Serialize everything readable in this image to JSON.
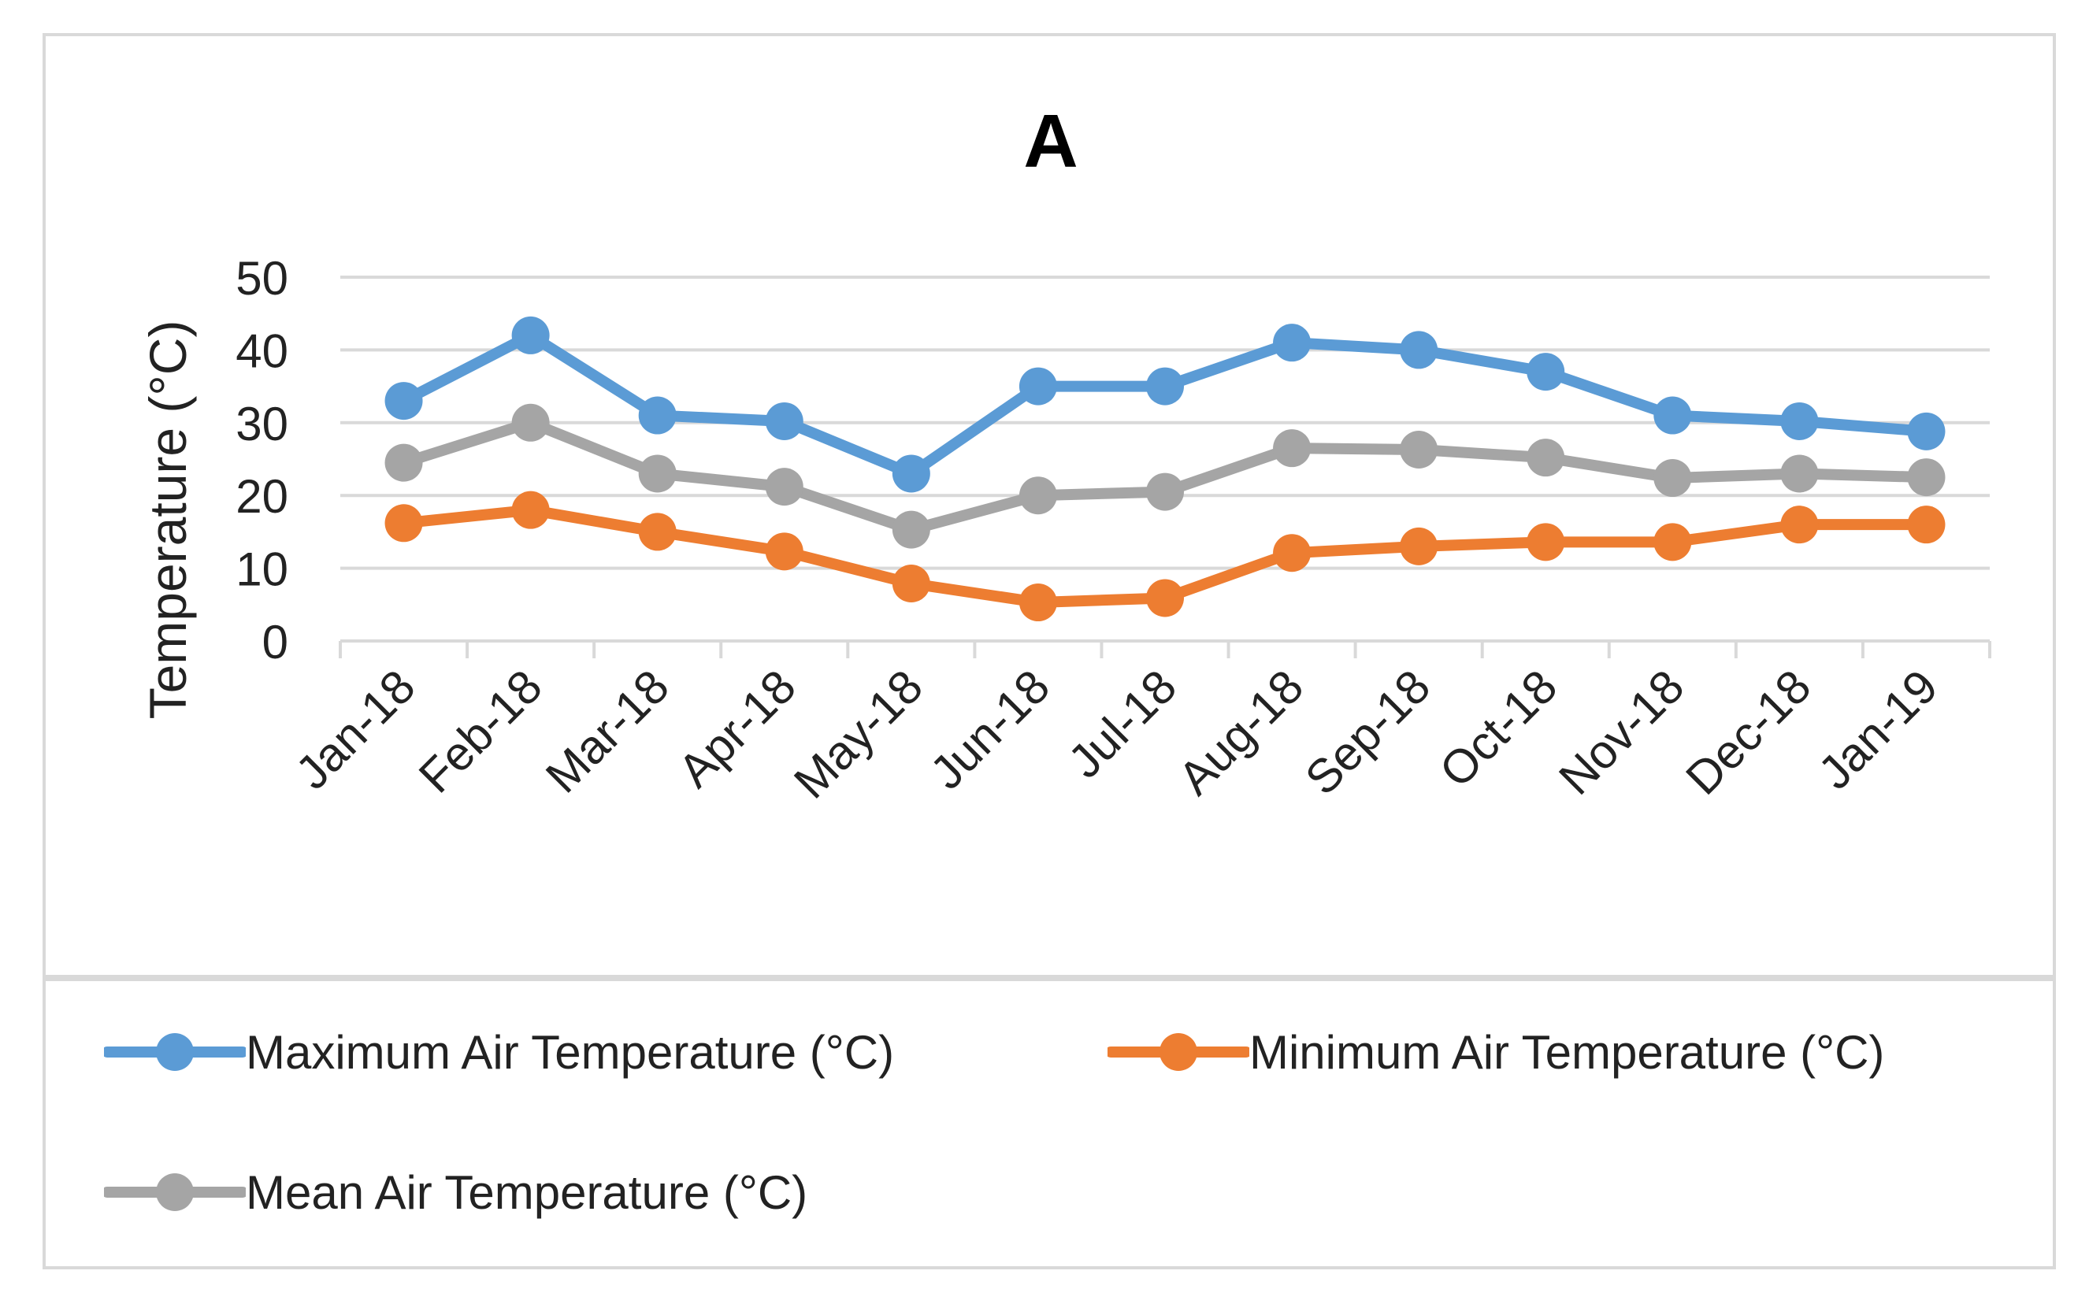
{
  "chart_data": {
    "type": "line",
    "title": "A",
    "xlabel": "",
    "ylabel": "Temperature (°C)",
    "ylim": [
      0,
      50
    ],
    "yticks": [
      0,
      10,
      20,
      30,
      40,
      50
    ],
    "grid": true,
    "legend_position": "bottom",
    "categories": [
      "Jan-18",
      "Feb-18",
      "Mar-18",
      "Apr-18",
      "May-18",
      "Jun-18",
      "Jul-18",
      "Aug-18",
      "Sep-18",
      "Oct-18",
      "Nov-18",
      "Dec-18",
      "Jan-19"
    ],
    "series": [
      {
        "name": "Maximum Air Temperature (°C)",
        "color": "#5b9bd5",
        "values": [
          33,
          42,
          31,
          30.2,
          23,
          35,
          35,
          41,
          40,
          37,
          31,
          30.2,
          28.8
        ]
      },
      {
        "name": "Minimum Air Temperature (°C)",
        "color": "#ed7d31",
        "values": [
          16.2,
          18,
          15,
          12.3,
          7.9,
          5.3,
          5.9,
          12.1,
          13,
          13.6,
          13.6,
          16,
          16
        ]
      },
      {
        "name": "Mean Air Temperature (°C)",
        "color": "#a5a5a5",
        "values": [
          24.5,
          30,
          23,
          21.2,
          15.3,
          20,
          20.5,
          26.5,
          26.3,
          25.2,
          22.4,
          23,
          22.5
        ]
      }
    ]
  }
}
